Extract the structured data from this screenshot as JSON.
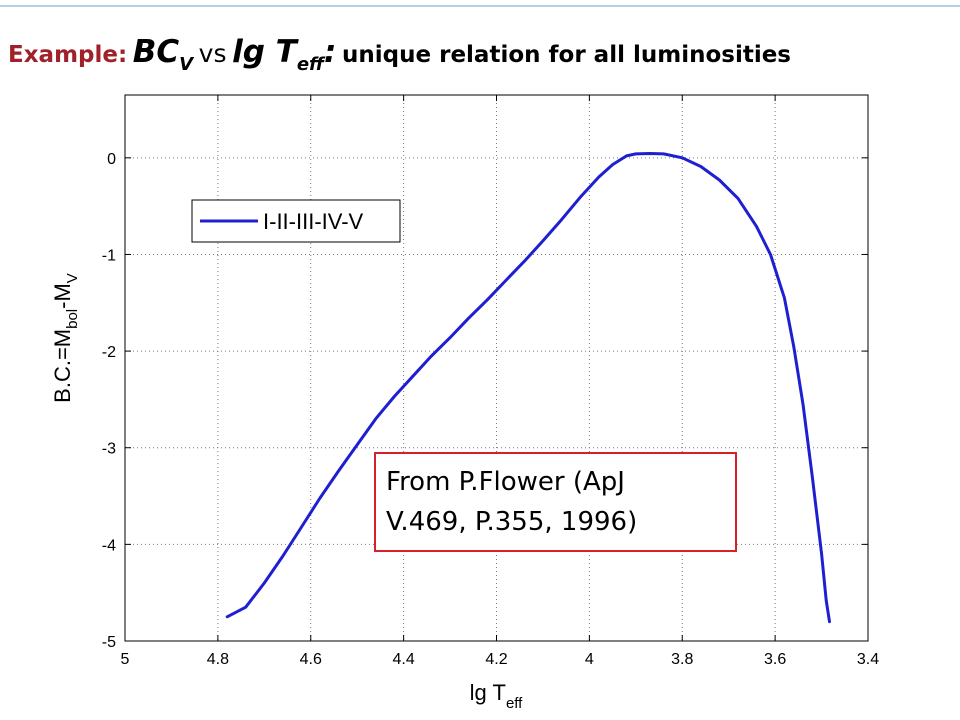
{
  "slide": {
    "title": {
      "lead": "Example:",
      "bc": "BC",
      "bc_sub": "V",
      "vs": "vs",
      "lg": "lg T",
      "lg_sub": "eff",
      "colon": ":",
      "rest": "unique relation for all luminosities"
    },
    "note_lines": [
      "From P.Flower (ApJ",
      "V.469, P.355, 1996)"
    ],
    "colors": {
      "title_accent": "#a0212a",
      "note_border": "#d7202a",
      "rule": "#b9cde3"
    }
  },
  "chart_data": {
    "type": "line",
    "xlabel": {
      "main": "lg T",
      "sub": "eff"
    },
    "ylabel": {
      "p1": "B.C.=M",
      "s1": "bol",
      "p2": "-M",
      "s2": "V"
    },
    "xlim": [
      5,
      3.4
    ],
    "ylim": [
      -5,
      0.65
    ],
    "x_reversed": true,
    "x_ticks": [
      5,
      4.8,
      4.6,
      4.4,
      4.2,
      4,
      3.8,
      3.6,
      3.4
    ],
    "y_ticks": [
      0,
      -1,
      -2,
      -3,
      -4,
      -5
    ],
    "x_tick_labels": [
      "5",
      "4.8",
      "4.6",
      "4.4",
      "4.2",
      "4",
      "3.8",
      "3.6",
      "3.4"
    ],
    "y_tick_labels": [
      "0",
      "-1",
      "-2",
      "-3",
      "-4",
      "-5"
    ],
    "grid": true,
    "legend": {
      "placement": "top-left",
      "entries": [
        "I-II-III-IV-V"
      ]
    },
    "series": [
      {
        "name": "I-II-III-IV-V",
        "color": "#1f1fd2",
        "points": [
          [
            4.78,
            -4.75
          ],
          [
            4.74,
            -4.65
          ],
          [
            4.7,
            -4.4
          ],
          [
            4.66,
            -4.12
          ],
          [
            4.62,
            -3.82
          ],
          [
            4.58,
            -3.52
          ],
          [
            4.54,
            -3.24
          ],
          [
            4.5,
            -2.97
          ],
          [
            4.46,
            -2.7
          ],
          [
            4.42,
            -2.47
          ],
          [
            4.38,
            -2.26
          ],
          [
            4.34,
            -2.05
          ],
          [
            4.3,
            -1.86
          ],
          [
            4.26,
            -1.66
          ],
          [
            4.22,
            -1.47
          ],
          [
            4.18,
            -1.27
          ],
          [
            4.14,
            -1.07
          ],
          [
            4.1,
            -0.86
          ],
          [
            4.06,
            -0.64
          ],
          [
            4.02,
            -0.41
          ],
          [
            3.98,
            -0.2
          ],
          [
            3.95,
            -0.07
          ],
          [
            3.92,
            0.02
          ],
          [
            3.9,
            0.04
          ],
          [
            3.87,
            0.045
          ],
          [
            3.84,
            0.04
          ],
          [
            3.8,
            0.0
          ],
          [
            3.76,
            -0.09
          ],
          [
            3.72,
            -0.23
          ],
          [
            3.68,
            -0.42
          ],
          [
            3.64,
            -0.71
          ],
          [
            3.61,
            -1.0
          ],
          [
            3.58,
            -1.45
          ],
          [
            3.56,
            -1.95
          ],
          [
            3.54,
            -2.55
          ],
          [
            3.52,
            -3.3
          ],
          [
            3.5,
            -4.1
          ],
          [
            3.49,
            -4.58
          ],
          [
            3.483,
            -4.8
          ]
        ]
      }
    ]
  }
}
